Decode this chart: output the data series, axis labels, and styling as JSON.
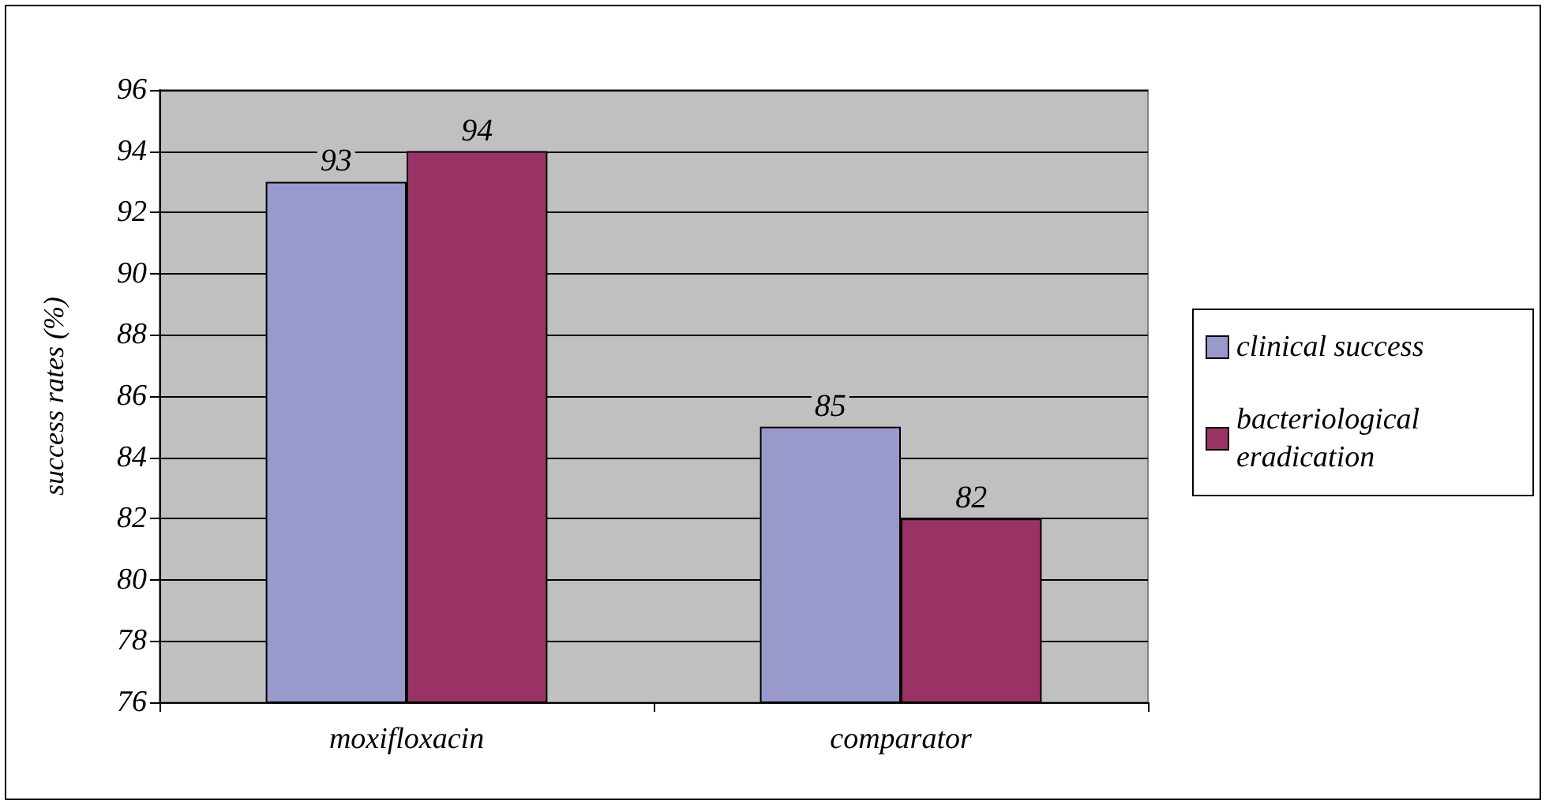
{
  "chart_data": {
    "type": "bar",
    "ylabel": "success rates (%)",
    "categories": [
      "moxifloxacin",
      "comparator"
    ],
    "series": [
      {
        "name": "clinical success",
        "color": "#9999cc",
        "values": [
          93,
          85
        ]
      },
      {
        "name": "bacteriological eradication",
        "color": "#993366",
        "values": [
          94,
          82
        ]
      }
    ],
    "ylim": [
      76,
      96
    ],
    "yticks": [
      76,
      78,
      80,
      82,
      84,
      86,
      88,
      90,
      92,
      94,
      96
    ],
    "grid": "y",
    "legend": "right",
    "data_labels": true
  }
}
